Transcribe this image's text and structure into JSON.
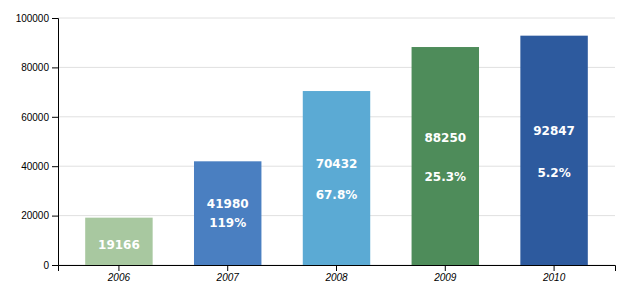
{
  "chart_data": {
    "type": "bar",
    "categories": [
      "2006",
      "2007",
      "2008",
      "2009",
      "2010"
    ],
    "values": [
      19166,
      41980,
      70432,
      88250,
      92847
    ],
    "colors": [
      "#a8c8a0",
      "#4a7fc1",
      "#5baad4",
      "#4e8c5a",
      "#2d5a9e"
    ],
    "data_labels": true,
    "annotations": [
      {
        "x": "2007",
        "text": "119%"
      },
      {
        "x": "2008",
        "text": "67.8%"
      },
      {
        "x": "2009",
        "text": "25.3%"
      },
      {
        "x": "2010",
        "text": "5.2%"
      }
    ],
    "ylim": [
      0,
      100000
    ],
    "yticks": [
      0,
      20000,
      40000,
      60000,
      80000,
      100000
    ],
    "grid": true
  }
}
